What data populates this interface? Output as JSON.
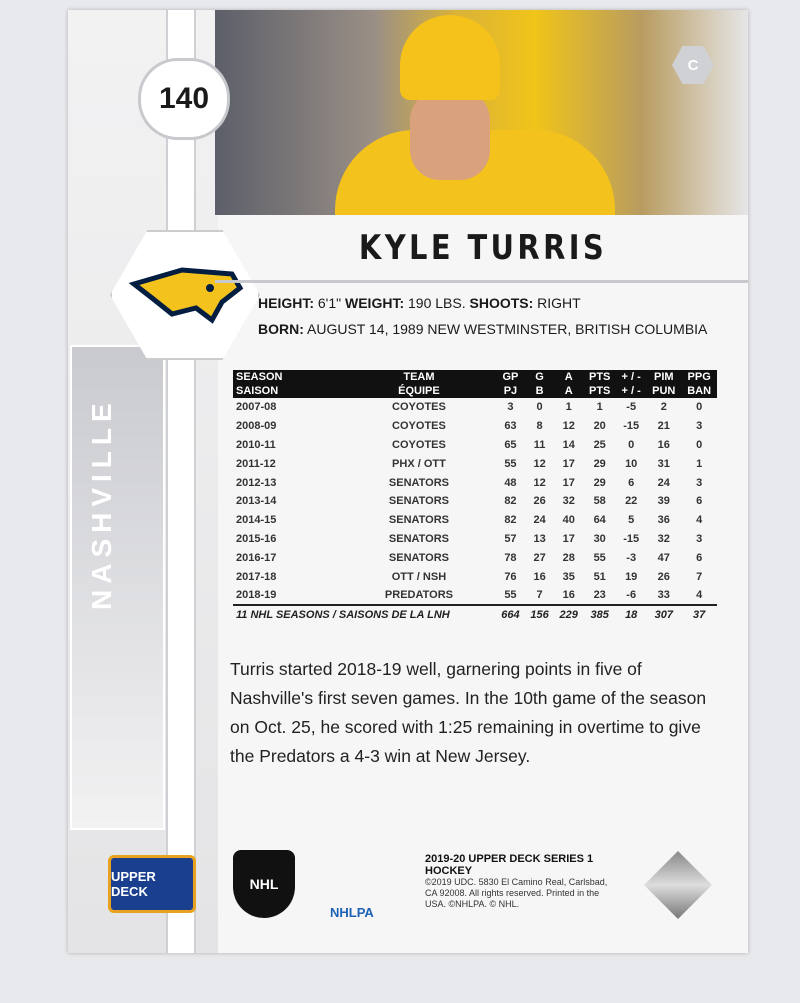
{
  "card": {
    "number": "140",
    "position": "C",
    "team": "NASHVILLE",
    "player_name": "KYLE TURRIS",
    "bio_info": {
      "height_label": "HEIGHT:",
      "height": "6'1\"",
      "weight_label": "WEIGHT:",
      "weight": "190 LBS.",
      "shoots_label": "SHOOTS:",
      "shoots": "RIGHT",
      "born_label": "BORN:",
      "born": "AUGUST 14, 1989  NEW WESTMINSTER, BRITISH COLUMBIA"
    }
  },
  "stats": {
    "headers": [
      [
        "SEASON",
        "TEAM",
        "GP",
        "G",
        "A",
        "PTS",
        "+ / -",
        "PIM",
        "PPG"
      ],
      [
        "SAISON",
        "ÉQUIPE",
        "PJ",
        "B",
        "A",
        "PTS",
        "+ / -",
        "PUN",
        "BAN"
      ]
    ],
    "rows": [
      [
        "2007-08",
        "COYOTES",
        "3",
        "0",
        "1",
        "1",
        "-5",
        "2",
        "0"
      ],
      [
        "2008-09",
        "COYOTES",
        "63",
        "8",
        "12",
        "20",
        "-15",
        "21",
        "3"
      ],
      [
        "2010-11",
        "COYOTES",
        "65",
        "11",
        "14",
        "25",
        "0",
        "16",
        "0"
      ],
      [
        "2011-12",
        "PHX / OTT",
        "55",
        "12",
        "17",
        "29",
        "10",
        "31",
        "1"
      ],
      [
        "2012-13",
        "SENATORS",
        "48",
        "12",
        "17",
        "29",
        "6",
        "24",
        "3"
      ],
      [
        "2013-14",
        "SENATORS",
        "82",
        "26",
        "32",
        "58",
        "22",
        "39",
        "6"
      ],
      [
        "2014-15",
        "SENATORS",
        "82",
        "24",
        "40",
        "64",
        "5",
        "36",
        "4"
      ],
      [
        "2015-16",
        "SENATORS",
        "57",
        "13",
        "17",
        "30",
        "-15",
        "32",
        "3"
      ],
      [
        "2016-17",
        "SENATORS",
        "78",
        "27",
        "28",
        "55",
        "-3",
        "47",
        "6"
      ],
      [
        "2017-18",
        "OTT / NSH",
        "76",
        "16",
        "35",
        "51",
        "19",
        "26",
        "7"
      ],
      [
        "2018-19",
        "PREDATORS",
        "55",
        "7",
        "16",
        "23",
        "-6",
        "33",
        "4"
      ]
    ],
    "total": [
      "11 NHL SEASONS / SAISONS DE LA LNH",
      "664",
      "156",
      "229",
      "385",
      "18",
      "307",
      "37"
    ]
  },
  "bio_text": "Turris started 2018-19 well, garnering points in five of Nashville's first seven games. In the 10th game of the season on Oct. 25, he scored with 1:25 remaining in overtime to give the Predators a 4-3 win at New Jersey.",
  "footer": {
    "brand": "UPPER DECK",
    "nhl": "NHL",
    "nhlpa": "NHLPA",
    "set": "2019-20 UPPER DECK SERIES 1 HOCKEY",
    "legal": "©2019 UDC. 5830 El Camino Real, Carlsbad, CA 92008. All rights reserved. Printed in the USA. ©NHLPA. © NHL."
  },
  "colors": {
    "accent_gold": "#f3c21c",
    "predators_navy": "#041e42",
    "header_black": "#111111"
  }
}
